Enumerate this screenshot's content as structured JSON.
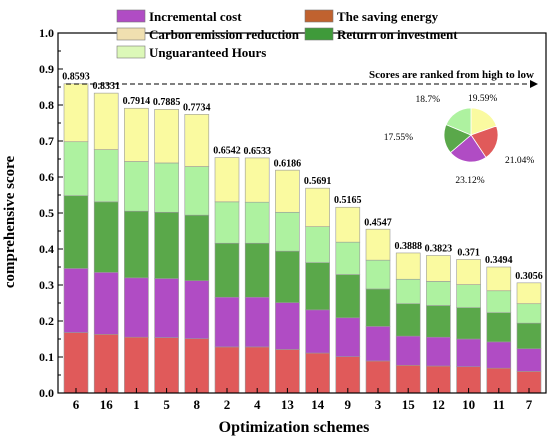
{
  "chart_data": {
    "type": "bar",
    "stacked": true,
    "xlabel": "Optimization schemes",
    "ylabel": "comprehensive score",
    "ylim": [
      0,
      1.0
    ],
    "yticks": [
      "0.0",
      "0.1",
      "0.2",
      "0.3",
      "0.4",
      "0.5",
      "0.6",
      "0.7",
      "0.8",
      "0.9",
      "1.0"
    ],
    "annotation": "Scores are ranked from high to low",
    "categories": [
      "6",
      "16",
      "1",
      "5",
      "8",
      "2",
      "4",
      "13",
      "14",
      "9",
      "3",
      "15",
      "12",
      "10",
      "11",
      "7"
    ],
    "totals": [
      0.8593,
      0.8331,
      0.7914,
      0.7885,
      0.7734,
      0.6542,
      0.6533,
      0.6186,
      0.5691,
      0.5165,
      0.4547,
      0.3888,
      0.3823,
      0.371,
      0.3494,
      0.3056
    ],
    "total_labels": [
      "0.8593",
      "0.8331",
      "0.7914",
      "0.7885",
      "0.7734",
      "0.6542",
      "0.6533",
      "0.6186",
      "0.5691",
      "0.5165",
      "0.4547",
      "0.3888",
      "0.3823",
      "0.371",
      "0.3494",
      "0.3056"
    ],
    "series": [
      {
        "name": "The saving energy",
        "color": "#e05a5a",
        "values": [
          0.168,
          0.163,
          0.155,
          0.154,
          0.151,
          0.128,
          0.128,
          0.121,
          0.111,
          0.101,
          0.089,
          0.077,
          0.075,
          0.073,
          0.069,
          0.06
        ]
      },
      {
        "name": "Incremental cost",
        "color": "#b04cc4",
        "values": [
          0.178,
          0.172,
          0.165,
          0.164,
          0.161,
          0.138,
          0.138,
          0.13,
          0.12,
          0.108,
          0.096,
          0.081,
          0.08,
          0.077,
          0.073,
          0.063
        ]
      },
      {
        "name": "Return on investment",
        "color": "#5aa84a",
        "values": [
          0.202,
          0.196,
          0.185,
          0.184,
          0.182,
          0.15,
          0.15,
          0.143,
          0.131,
          0.12,
          0.104,
          0.09,
          0.088,
          0.087,
          0.081,
          0.071
        ]
      },
      {
        "name": "Carbon emission reduction",
        "color": "#aef2a0",
        "values": [
          0.15,
          0.145,
          0.138,
          0.137,
          0.135,
          0.115,
          0.114,
          0.108,
          0.1,
          0.09,
          0.08,
          0.068,
          0.067,
          0.064,
          0.061,
          0.054
        ]
      },
      {
        "name": "Unguaranteed Hours",
        "color": "#fafaa0",
        "values": [
          0.161,
          0.157,
          0.148,
          0.149,
          0.145,
          0.123,
          0.123,
          0.117,
          0.107,
          0.097,
          0.086,
          0.073,
          0.072,
          0.07,
          0.066,
          0.058
        ]
      }
    ],
    "legend": [
      {
        "name": "Incremental cost",
        "color": "#b04cc4"
      },
      {
        "name": "The saving energy",
        "color": "#c0622f"
      },
      {
        "name": "Carbon emission reduction",
        "color": "#f0e0b0"
      },
      {
        "name": "Return on investment",
        "color": "#3f9a3a"
      },
      {
        "name": "Unguaranteed Hours",
        "color": "#dcf8b8"
      }
    ],
    "pie": {
      "slices": [
        {
          "label": "19.59%",
          "value": 19.59,
          "color": "#fafaa0"
        },
        {
          "label": "21.04%",
          "value": 21.04,
          "color": "#e05a5a"
        },
        {
          "label": "23.12%",
          "value": 23.12,
          "color": "#b04cc4"
        },
        {
          "label": "17.55%",
          "value": 17.55,
          "color": "#5aa84a"
        },
        {
          "label": "18.7%",
          "value": 18.7,
          "color": "#aef2a0"
        }
      ]
    }
  }
}
